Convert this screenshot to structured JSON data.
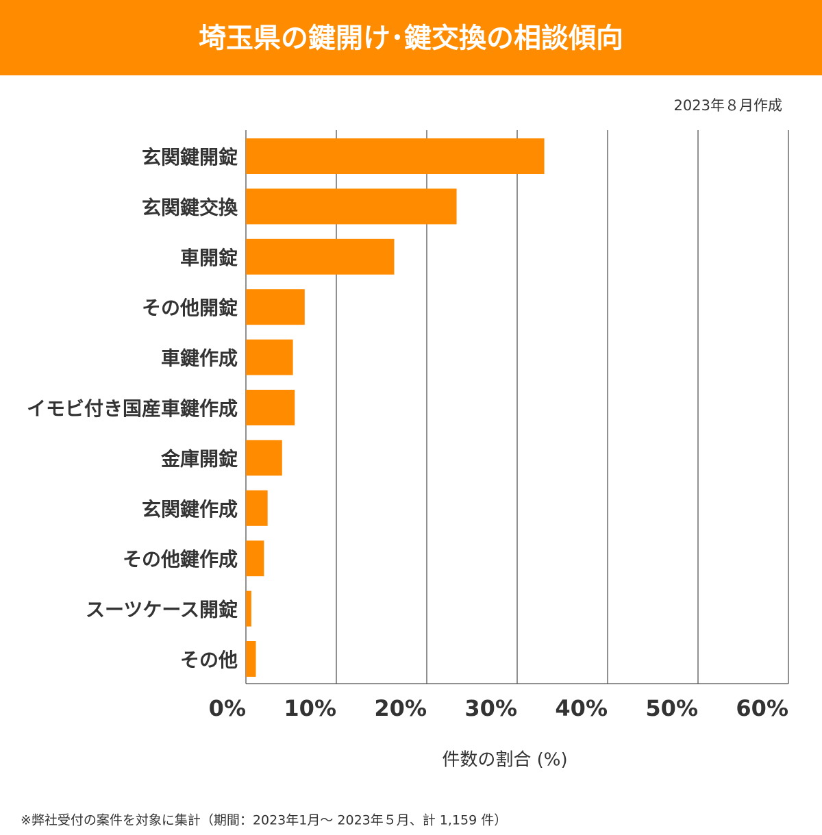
{
  "title": "埼玉県の鍵開け･鍵交換の相談傾向",
  "date_note": "2023年８月作成",
  "footnote": "※弊社受付の案件を対象に集計（期間：2023年1月～ 2023年５月、計 1,159 件）",
  "chart_data": {
    "type": "hbar",
    "x_label": "件数の割合 (%)",
    "categories": [
      "玄関鍵開錠",
      "玄関鍵交換",
      "車開錠",
      "その他開錠",
      "車鍵作成",
      "イモビ付き国産車鍵作成",
      "金庫開錠",
      "玄関鍵作成",
      "その他鍵作成",
      "スーツケース開錠",
      "その他"
    ],
    "values": [
      33.0,
      23.3,
      16.4,
      6.5,
      5.2,
      5.4,
      4.0,
      2.4,
      2.0,
      0.6,
      1.1
    ],
    "color": "#ff8c00",
    "xlim": [
      0,
      60
    ],
    "xticks": [
      {
        "value": 0,
        "label": "0%"
      },
      {
        "value": 10,
        "label": "10%"
      },
      {
        "value": 20,
        "label": "20%"
      },
      {
        "value": 30,
        "label": "30%"
      },
      {
        "value": 40,
        "label": "40%"
      },
      {
        "value": 50,
        "label": "50%"
      },
      {
        "value": 60,
        "label": "60%"
      }
    ],
    "grid": true
  }
}
